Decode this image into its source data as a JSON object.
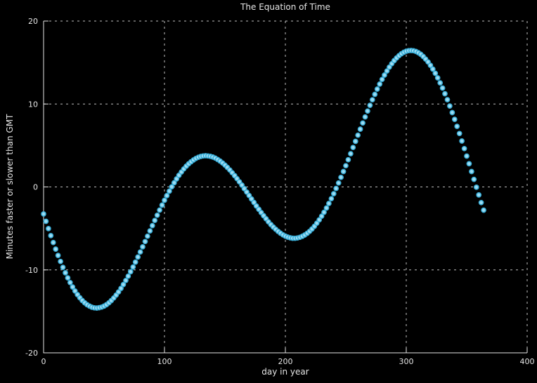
{
  "chart_data": {
    "type": "scatter",
    "title": "The Equation of Time",
    "xlabel": "day in year",
    "ylabel": "Minutes faster or slower than GMT",
    "xlim": [
      0,
      400
    ],
    "ylim": [
      -20,
      20
    ],
    "x_ticks": [
      0,
      100,
      200,
      300,
      400
    ],
    "y_ticks": [
      -20,
      -10,
      0,
      10,
      20
    ],
    "grid": "dashed",
    "legend": "none",
    "colors": {
      "background": "#000000",
      "grid": "#ffffff",
      "axis": "#e6e6e6",
      "text": "#e6e6e6",
      "marker_fill": "#9ddcf3",
      "marker_stroke": "#38aed8"
    },
    "series": [
      {
        "marker": "circle",
        "x": [
          0,
          2,
          4,
          6,
          8,
          10,
          12,
          14,
          16,
          18,
          20,
          22,
          24,
          26,
          28,
          30,
          32,
          34,
          36,
          38,
          40,
          42,
          44,
          46,
          48,
          50,
          52,
          54,
          56,
          58,
          60,
          62,
          64,
          66,
          68,
          70,
          72,
          74,
          76,
          78,
          80,
          82,
          84,
          86,
          88,
          90,
          92,
          94,
          96,
          98,
          100,
          102,
          104,
          106,
          108,
          110,
          112,
          114,
          116,
          118,
          120,
          122,
          124,
          126,
          128,
          130,
          132,
          134,
          136,
          138,
          140,
          142,
          144,
          146,
          148,
          150,
          152,
          154,
          156,
          158,
          160,
          162,
          164,
          166,
          168,
          170,
          172,
          174,
          176,
          178,
          180,
          182,
          184,
          186,
          188,
          190,
          192,
          194,
          196,
          198,
          200,
          202,
          204,
          206,
          208,
          210,
          212,
          214,
          216,
          218,
          220,
          222,
          224,
          226,
          228,
          230,
          232,
          234,
          236,
          238,
          240,
          242,
          244,
          246,
          248,
          250,
          252,
          254,
          256,
          258,
          260,
          262,
          264,
          266,
          268,
          270,
          272,
          274,
          276,
          278,
          280,
          282,
          284,
          286,
          288,
          290,
          292,
          294,
          296,
          298,
          300,
          302,
          304,
          306,
          308,
          310,
          312,
          314,
          316,
          318,
          320,
          322,
          324,
          326,
          328,
          330,
          332,
          334,
          336,
          338,
          340,
          342,
          344,
          346,
          348,
          350,
          352,
          354,
          356,
          358,
          360,
          362,
          364
        ],
        "y": [
          -3.26,
          -4.14,
          -5.02,
          -5.87,
          -6.7,
          -7.49,
          -8.25,
          -8.98,
          -9.69,
          -10.35,
          -10.96,
          -11.53,
          -12.06,
          -12.54,
          -12.98,
          -13.36,
          -13.69,
          -13.97,
          -14.2,
          -14.37,
          -14.5,
          -14.57,
          -14.6,
          -14.55,
          -14.49,
          -14.37,
          -14.2,
          -13.97,
          -13.7,
          -13.39,
          -13.04,
          -12.66,
          -12.23,
          -11.76,
          -11.27,
          -10.76,
          -10.22,
          -9.65,
          -9.06,
          -8.45,
          -7.84,
          -7.22,
          -6.58,
          -5.94,
          -5.29,
          -4.66,
          -4.03,
          -3.41,
          -2.79,
          -2.19,
          -1.61,
          -1.05,
          -0.51,
          0.02,
          0.51,
          0.97,
          1.4,
          1.8,
          2.17,
          2.5,
          2.79,
          3.04,
          3.26,
          3.44,
          3.58,
          3.68,
          3.74,
          3.76,
          3.74,
          3.69,
          3.6,
          3.48,
          3.31,
          3.12,
          2.89,
          2.64,
          2.36,
          2.05,
          1.72,
          1.36,
          1.0,
          0.62,
          0.22,
          -0.2,
          -0.62,
          -1.03,
          -1.45,
          -1.87,
          -2.29,
          -2.7,
          -3.09,
          -3.47,
          -3.84,
          -4.2,
          -4.53,
          -4.83,
          -5.1,
          -5.36,
          -5.58,
          -5.78,
          -5.93,
          -6.05,
          -6.13,
          -6.18,
          -6.19,
          -6.15,
          -6.07,
          -5.95,
          -5.79,
          -5.59,
          -5.35,
          -5.07,
          -4.74,
          -4.37,
          -3.97,
          -3.53,
          -3.05,
          -2.54,
          -1.99,
          -1.41,
          -0.81,
          -0.18,
          0.48,
          1.16,
          1.86,
          2.56,
          3.28,
          4.01,
          4.76,
          5.5,
          6.24,
          6.97,
          7.71,
          8.44,
          9.15,
          9.84,
          10.51,
          11.16,
          11.8,
          12.4,
          12.96,
          13.49,
          13.98,
          14.44,
          14.86,
          15.23,
          15.55,
          15.83,
          16.06,
          16.24,
          16.36,
          16.43,
          16.45,
          16.42,
          16.33,
          16.19,
          15.99,
          15.73,
          15.42,
          15.07,
          14.66,
          14.21,
          13.7,
          13.15,
          12.55,
          11.92,
          11.24,
          10.52,
          9.76,
          8.96,
          8.15,
          7.31,
          6.44,
          5.54,
          4.63,
          3.72,
          2.8,
          1.86,
          0.91,
          -0.03,
          -0.96,
          -1.89,
          -2.8
        ]
      }
    ]
  }
}
